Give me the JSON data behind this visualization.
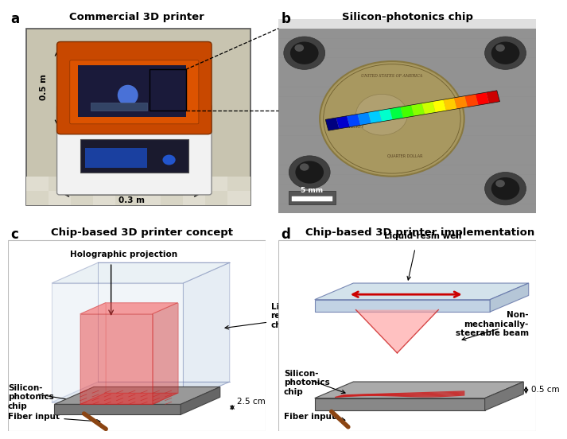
{
  "panel_labels": [
    "a",
    "b",
    "c",
    "d"
  ],
  "panel_titles": [
    "Commercial 3D printer",
    "Silicon-photonics chip",
    "Chip-based 3D printer concept",
    "Chip-based 3D printer implementation"
  ],
  "annotations_c": {
    "holographic_projection": "Holographic projection",
    "liquid_resin_chamber": "Liquid-\nresin\nchamber",
    "silicon_photonics_chip": "Silicon-\nphotonics\nchip",
    "fiber_input": "Fiber input",
    "size_label": "2.5 cm"
  },
  "annotations_d": {
    "liquid_resin_well": "Liquid-resin well",
    "non_mechanically": "Non-\nmechanically-\nsteerable beam",
    "silicon_photonics_chip": "Silicon-\nphotonics\nchip",
    "fiber_input": "Fiber input",
    "size_label": "0.5 cm"
  },
  "annotations_a": {
    "height": "0.5 m",
    "width": "0.3 m"
  },
  "scale_bar_b": "5 mm",
  "bg_color": "#ffffff",
  "panel_label_fontsize": 12,
  "title_fontsize": 9.5,
  "annotation_fontsize": 7.5
}
